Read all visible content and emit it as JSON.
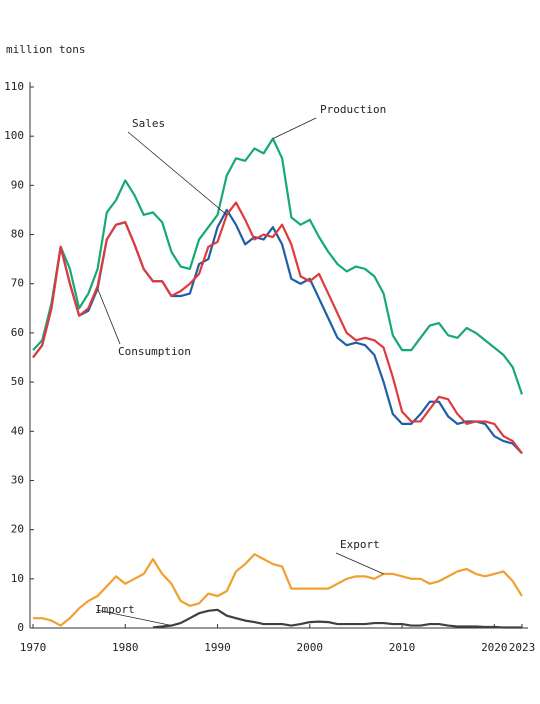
{
  "chart_data": {
    "type": "line",
    "y_label": "million tons",
    "x": [
      1970,
      1971,
      1972,
      1973,
      1974,
      1975,
      1976,
      1977,
      1978,
      1979,
      1980,
      1981,
      1982,
      1983,
      1984,
      1985,
      1986,
      1987,
      1988,
      1989,
      1990,
      1991,
      1992,
      1993,
      1994,
      1995,
      1996,
      1997,
      1998,
      1999,
      2000,
      2001,
      2002,
      2003,
      2004,
      2005,
      2006,
      2007,
      2008,
      2009,
      2010,
      2011,
      2012,
      2013,
      2014,
      2015,
      2016,
      2017,
      2018,
      2019,
      2020,
      2021,
      2022,
      2023
    ],
    "series": [
      {
        "name": "Production",
        "color": "#17a877",
        "values": [
          56.5,
          58.5,
          66,
          77.5,
          73,
          65,
          68,
          73,
          84.5,
          87,
          91,
          88,
          84,
          84.5,
          82.5,
          76.5,
          73.5,
          73,
          79,
          81.5,
          84,
          92,
          95.5,
          95,
          97.5,
          96.5,
          99.5,
          95.5,
          83.5,
          82,
          83,
          79.5,
          76.5,
          74,
          72.5,
          73.5,
          73,
          71.5,
          68,
          59.5,
          56.5,
          56.5,
          59,
          61.5,
          62,
          59.5,
          59,
          61,
          60,
          58.5,
          57,
          55.5,
          53,
          47.5
        ]
      },
      {
        "name": "Consumption",
        "color": "#1f5fa8",
        "values": [
          55,
          57.5,
          65,
          77.5,
          70,
          63.5,
          64.5,
          69,
          79,
          82,
          82.5,
          78,
          73,
          70.5,
          70.5,
          67.5,
          67.5,
          68,
          74,
          75,
          81.5,
          85,
          82,
          78,
          79.5,
          79,
          81.5,
          78,
          71,
          70,
          71,
          67,
          63,
          59,
          57.5,
          58,
          57.5,
          55.5,
          50,
          43.5,
          41.5,
          41.5,
          43.5,
          46,
          46,
          43,
          41.5,
          42,
          42,
          41.5,
          39,
          38,
          37.5,
          35.5
        ]
      },
      {
        "name": "Sales",
        "color": "#e03a3e",
        "values": [
          55,
          57.5,
          65,
          77.5,
          70,
          63.5,
          65,
          69.5,
          79,
          82,
          82.5,
          78,
          73,
          70.5,
          70.5,
          67.5,
          68.5,
          70,
          72,
          77.5,
          78.5,
          84,
          86.5,
          83,
          79,
          80,
          79.5,
          82,
          78,
          71.5,
          70.5,
          72,
          68,
          64,
          60,
          58.5,
          59,
          58.5,
          57,
          51,
          44,
          42,
          42,
          44.5,
          47,
          46.5,
          43.5,
          41.5,
          42,
          42,
          41.5,
          39,
          38,
          35.5
        ]
      },
      {
        "name": "Export",
        "color": "#f0a030",
        "values": [
          2,
          2,
          1.5,
          0.5,
          2,
          4,
          5.5,
          6.5,
          8.5,
          10.5,
          9,
          10,
          11,
          14,
          11,
          9,
          5.5,
          4.5,
          5,
          7,
          6.5,
          7.5,
          11.5,
          13,
          15,
          14,
          13,
          12.5,
          8,
          8,
          8,
          8,
          8,
          9,
          10,
          10.5,
          10.5,
          10,
          11,
          11,
          10.5,
          10,
          10,
          9,
          9.5,
          10.5,
          11.5,
          12,
          11,
          10.5,
          11,
          11.5,
          9.5,
          6.5
        ]
      },
      {
        "name": "Import",
        "color": "#404040",
        "values": [
          null,
          null,
          null,
          null,
          null,
          null,
          null,
          null,
          null,
          null,
          null,
          null,
          null,
          0.1,
          0.3,
          0.5,
          1,
          2,
          3,
          3.5,
          3.7,
          2.5,
          2,
          1.5,
          1.2,
          0.8,
          0.8,
          0.8,
          0.5,
          0.8,
          1.2,
          1.3,
          1.2,
          0.8,
          0.8,
          0.8,
          0.8,
          1,
          1,
          0.8,
          0.8,
          0.5,
          0.5,
          0.8,
          0.8,
          0.5,
          0.3,
          0.3,
          0.3,
          0.2,
          0.2,
          0.1,
          0.1,
          0.1
        ]
      }
    ],
    "xlim": [
      1970,
      2023
    ],
    "xticks": [
      1970,
      1980,
      1990,
      2000,
      2010,
      2020,
      2023
    ],
    "ylim": [
      0,
      110
    ],
    "yticks": [
      0,
      10,
      20,
      30,
      40,
      50,
      60,
      70,
      80,
      90,
      100,
      110
    ],
    "grid": false
  }
}
